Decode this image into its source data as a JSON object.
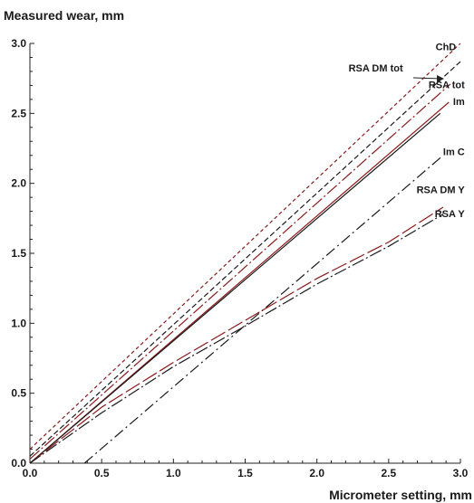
{
  "chart_data": {
    "type": "line",
    "title": "",
    "xlabel": "Micrometer setting, mm",
    "ylabel": "Measured wear, mm",
    "xlim": [
      0,
      3.0
    ],
    "ylim": [
      0,
      3.0
    ],
    "xticks": [
      "0.0",
      "0.5",
      "1.0",
      "1.5",
      "2.0",
      "2.5",
      "3.0"
    ],
    "yticks": [
      "0.0",
      "0.5",
      "1.0",
      "1.5",
      "2.0",
      "2.5",
      "3.0"
    ],
    "grid": false,
    "legend": "labels at line ends",
    "series": [
      {
        "name": "ChD",
        "color": "#8b1a1a",
        "dash": "4,3",
        "x": [
          0,
          3.0
        ],
        "y": [
          0.1,
          3.0
        ]
      },
      {
        "name": "RSA DM tot",
        "color": "#1a1a1a",
        "dash": "6,3",
        "x": [
          0,
          3.0
        ],
        "y": [
          0.05,
          2.87
        ]
      },
      {
        "name": "RSA tot",
        "color": "#8b1a1a",
        "dash": "14,3,2,3",
        "x": [
          0,
          2.93
        ],
        "y": [
          0.03,
          2.71
        ]
      },
      {
        "name": "Im",
        "color": "#8b1a1a",
        "dash": "",
        "x": [
          0,
          2.92
        ],
        "y": [
          0.0,
          2.58
        ]
      },
      {
        "name": "",
        "color": "#1a1a1a",
        "dash": "",
        "x": [
          0,
          2.86
        ],
        "y": [
          0.0,
          2.5
        ]
      },
      {
        "name": "Im C",
        "color": "#1a1a1a",
        "dash": "12,4,2,4",
        "x": [
          0.38,
          2.88
        ],
        "y": [
          0.0,
          2.2
        ]
      },
      {
        "name": "RSA DM Y",
        "color": "#8b1a1a",
        "dash": "18,4",
        "x": [
          0,
          0.5,
          1.0,
          1.5,
          2.0,
          2.5,
          2.88
        ],
        "y": [
          0.0,
          0.4,
          0.72,
          1.02,
          1.32,
          1.58,
          1.83
        ]
      },
      {
        "name": "RSA Y",
        "color": "#1a1a1a",
        "dash": "14,3,2,3",
        "x": [
          0,
          0.5,
          1.0,
          1.5,
          2.0,
          2.5,
          2.88
        ],
        "y": [
          0.0,
          0.36,
          0.69,
          0.98,
          1.28,
          1.55,
          1.78
        ]
      }
    ],
    "annotations": [
      {
        "text": "ChD",
        "x": 2.97,
        "y": 2.95
      },
      {
        "text": "RSA DM tot",
        "x": 2.6,
        "y": 2.8
      },
      {
        "text": "RSA tot",
        "x": 3.03,
        "y": 2.68
      },
      {
        "text": "Im",
        "x": 3.03,
        "y": 2.56
      },
      {
        "text": "Im C",
        "x": 3.03,
        "y": 2.2
      },
      {
        "text": "RSA DM Y",
        "x": 3.03,
        "y": 1.93
      },
      {
        "text": "RSA Y",
        "x": 3.03,
        "y": 1.76
      }
    ]
  }
}
